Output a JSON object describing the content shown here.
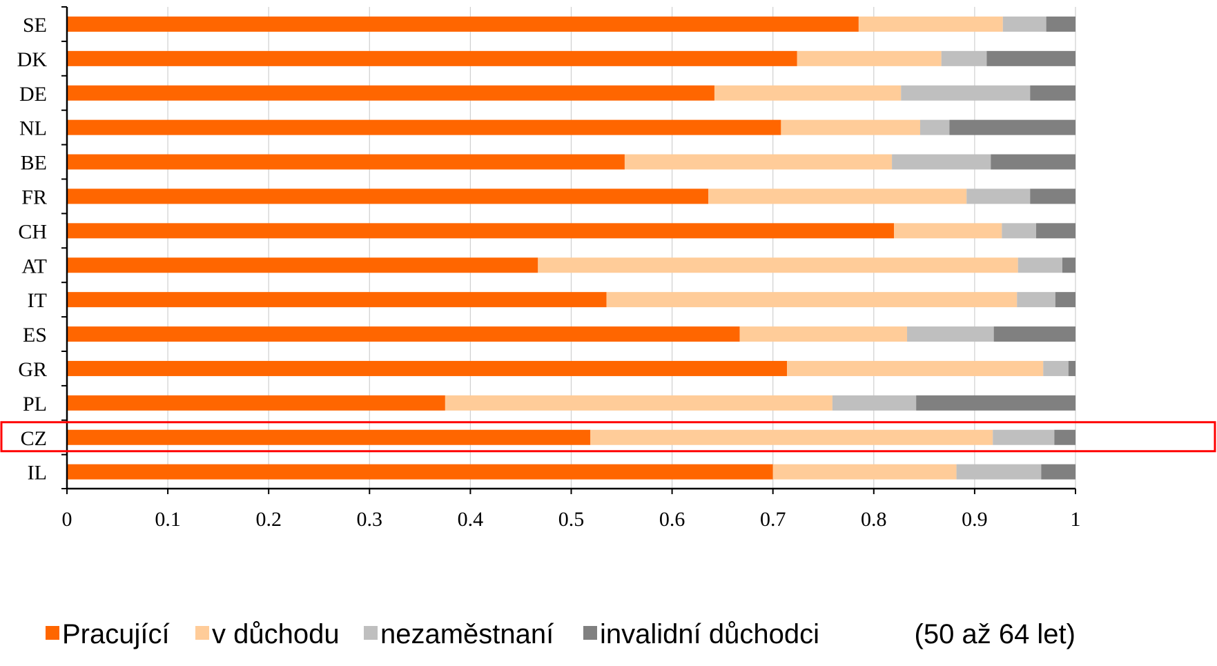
{
  "chart_data": {
    "type": "bar",
    "orientation": "horizontal",
    "stacked": true,
    "categories": [
      "SE",
      "DK",
      "DE",
      "NL",
      "BE",
      "FR",
      "CH",
      "AT",
      "IT",
      "ES",
      "GR",
      "PL",
      "CZ",
      "IL"
    ],
    "series": [
      {
        "name": "Pracující",
        "color": "#FF6600",
        "values": [
          0.785,
          0.724,
          0.642,
          0.708,
          0.553,
          0.636,
          0.82,
          0.467,
          0.535,
          0.667,
          0.714,
          0.375,
          0.519,
          0.7
        ]
      },
      {
        "name": "v důchodu",
        "color": "#FFCC99",
        "values": [
          0.143,
          0.143,
          0.185,
          0.138,
          0.265,
          0.256,
          0.107,
          0.476,
          0.407,
          0.166,
          0.254,
          0.384,
          0.399,
          0.182
        ]
      },
      {
        "name": "nezaměstnaní",
        "color": "#BFBFBF",
        "values": [
          0.043,
          0.045,
          0.128,
          0.029,
          0.098,
          0.063,
          0.034,
          0.044,
          0.038,
          0.086,
          0.025,
          0.083,
          0.061,
          0.084
        ]
      },
      {
        "name": "invalidní důchodci",
        "color": "#808080",
        "values": [
          0.029,
          0.088,
          0.045,
          0.125,
          0.084,
          0.045,
          0.039,
          0.013,
          0.02,
          0.081,
          0.007,
          0.158,
          0.021,
          0.034
        ]
      }
    ],
    "x_ticks": [
      "0",
      "0.1",
      "0.2",
      "0.3",
      "0.4",
      "0.5",
      "0.6",
      "0.7",
      "0.8",
      "0.9",
      "1"
    ],
    "xlim": [
      0,
      1
    ],
    "xlabel": "",
    "ylabel": "",
    "grid": "vertical",
    "legend_position": "bottom",
    "highlighted_category": "CZ",
    "highlight_color": "#FF0000",
    "note": "(50 až 64 let)"
  }
}
